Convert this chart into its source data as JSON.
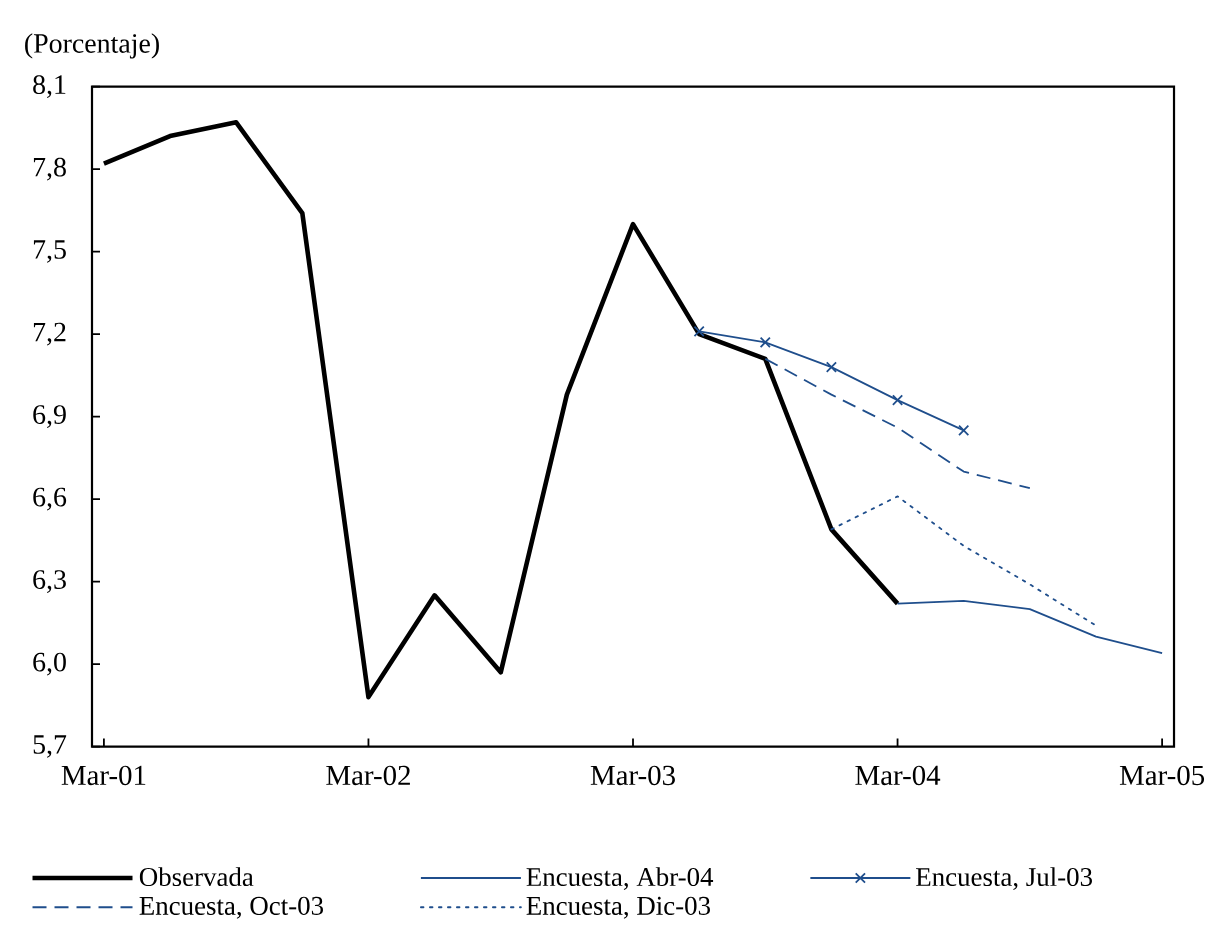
{
  "chart_data": {
    "type": "line",
    "ylabel": "(Porcentaje)",
    "categories": [
      "Mar-01",
      null,
      null,
      null,
      "Mar-02",
      null,
      null,
      null,
      "Mar-03",
      null,
      null,
      null,
      "Mar-04",
      null,
      null,
      null,
      "Mar-05"
    ],
    "series": [
      {
        "name": "Observada",
        "color": "#000000",
        "line_style": "solid",
        "values": [
          7.82,
          7.92,
          7.97,
          7.64,
          5.88,
          6.25,
          5.97,
          6.98,
          7.6,
          7.2,
          7.11,
          6.49,
          6.22,
          null,
          null,
          null,
          null
        ]
      },
      {
        "name": "Encuesta, Abr-04",
        "color": "#1f4e8c",
        "line_style": "solid",
        "values": [
          null,
          null,
          null,
          null,
          null,
          null,
          null,
          null,
          null,
          null,
          null,
          null,
          6.22,
          6.23,
          6.2,
          6.1,
          6.04
        ]
      },
      {
        "name": "Encuesta, Jul-03",
        "color": "#1f4e8c",
        "line_style": "solid",
        "marker": "cross",
        "values": [
          null,
          null,
          null,
          null,
          null,
          null,
          null,
          null,
          null,
          7.21,
          7.17,
          7.08,
          6.96,
          6.85,
          null,
          null,
          null
        ]
      },
      {
        "name": "Encuesta, Oct-03",
        "color": "#1f4e8c",
        "line_style": "dashed",
        "values": [
          null,
          null,
          null,
          null,
          null,
          null,
          null,
          null,
          null,
          null,
          7.11,
          6.98,
          6.86,
          6.7,
          6.64,
          null,
          null
        ]
      },
      {
        "name": "Encuesta, Dic-03",
        "color": "#1f4e8c",
        "line_style": "dotted",
        "values": [
          null,
          null,
          null,
          null,
          null,
          null,
          null,
          null,
          null,
          null,
          null,
          6.49,
          6.61,
          6.43,
          6.29,
          6.14,
          null
        ]
      }
    ],
    "ylim": [
      5.7,
      8.1
    ],
    "yticks": [
      {
        "value": 5.7,
        "label": "5,7"
      },
      {
        "value": 6.0,
        "label": "6,0"
      },
      {
        "value": 6.3,
        "label": "6,3"
      },
      {
        "value": 6.6,
        "label": "6,6"
      },
      {
        "value": 6.9,
        "label": "6,9"
      },
      {
        "value": 7.2,
        "label": "7,2"
      },
      {
        "value": 7.5,
        "label": "7,5"
      },
      {
        "value": 7.8,
        "label": "7,8"
      },
      {
        "value": 8.1,
        "label": "8,1"
      }
    ],
    "legend": "bottom"
  }
}
